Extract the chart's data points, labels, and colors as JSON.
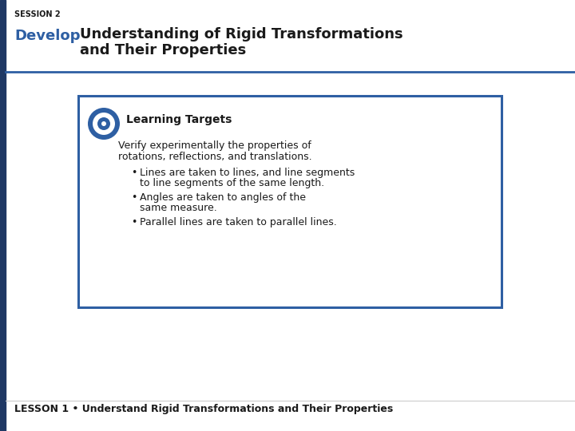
{
  "bg_color": "#ffffff",
  "left_bar_color": "#1f3864",
  "top_bar_color": "#2e5fa3",
  "session_label": "SESSION 2",
  "develop_word": "Develop",
  "title_line1": "Understanding of Rigid Transformations",
  "title_line2": "and Their Properties",
  "develop_color": "#2e5fa3",
  "title_color": "#1a1a1a",
  "session_color": "#1a1a1a",
  "box_border_color": "#2e5fa3",
  "learning_targets_label": "Learning Targets",
  "verify_text_line1": "Verify experimentally the properties of",
  "verify_text_line2": "rotations, reflections, and translations.",
  "bullet1_line1": "Lines are taken to lines, and line segments",
  "bullet1_line2": "to line segments of the same length.",
  "bullet2_line1": "Angles are taken to angles of the",
  "bullet2_line2": "same measure.",
  "bullet3": "Parallel lines are taken to parallel lines.",
  "footer_text": "LESSON 1 • Understand Rigid Transformations and Their Properties",
  "target_icon_color": "#2e5fa3",
  "target_icon_inner": "#ffffff",
  "session_fontsize": 7,
  "title_fontsize": 13,
  "content_fontsize": 9,
  "lt_fontsize": 10,
  "footer_fontsize": 9
}
